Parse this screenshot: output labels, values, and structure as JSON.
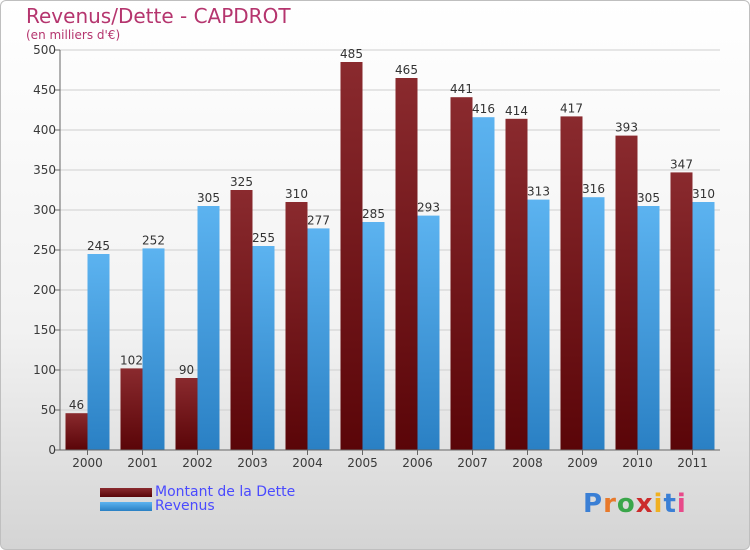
{
  "title": "Revenus/Dette - CAPDROT",
  "subtitle": "(en milliers d'€)",
  "colors": {
    "title": "#b5356e",
    "dette": "#7a1418",
    "revenus": "#3b9ae0",
    "legend_text": "#4a4aff"
  },
  "logo": {
    "text": "Proxiti",
    "letter_colors": [
      "#3a7fd5",
      "#e8792a",
      "#3aa64a",
      "#cc2b2b",
      "#f0b020",
      "#3a7fd5",
      "#e84a8a"
    ]
  },
  "chart_data": {
    "type": "bar",
    "title": "Revenus/Dette - CAPDROT",
    "subtitle": "(en milliers d'€)",
    "xlabel": "",
    "ylabel": "",
    "ylim": [
      0,
      500
    ],
    "yticks": [
      0,
      50,
      100,
      150,
      200,
      250,
      300,
      350,
      400,
      450,
      500
    ],
    "grid": true,
    "legend_position": "bottom-left",
    "categories": [
      "2000",
      "2001",
      "2002",
      "2003",
      "2004",
      "2005",
      "2006",
      "2007",
      "2008",
      "2009",
      "2010",
      "2011"
    ],
    "series": [
      {
        "name": "Montant de la Dette",
        "color": "#7a1418",
        "values": [
          46,
          102,
          90,
          325,
          310,
          485,
          465,
          441,
          414,
          417,
          393,
          347
        ]
      },
      {
        "name": "Revenus",
        "color": "#3b9ae0",
        "values": [
          245,
          252,
          305,
          255,
          277,
          285,
          293,
          416,
          313,
          316,
          305,
          310
        ]
      }
    ]
  }
}
